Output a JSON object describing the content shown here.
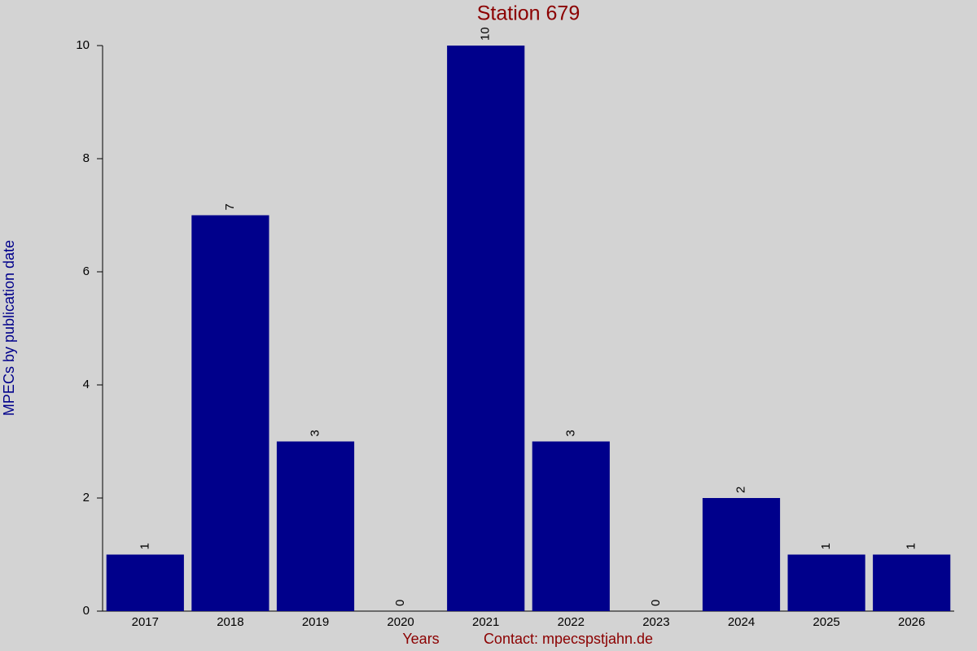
{
  "chart_data": {
    "type": "bar",
    "title": "Station 679",
    "ylabel": "MPECs by publication date",
    "xlabel": "Years",
    "note": "Contact: mpecspstjahn.de",
    "categories": [
      "2017",
      "2018",
      "2019",
      "2020",
      "2021",
      "2022",
      "2023",
      "2024",
      "2025",
      "2026"
    ],
    "values": [
      1,
      7,
      3,
      0,
      10,
      3,
      0,
      2,
      1,
      1
    ],
    "color": "#00008b",
    "ylim": [
      0,
      10
    ],
    "yticks": [
      0,
      2,
      4,
      6,
      8,
      10
    ],
    "grid": false
  }
}
